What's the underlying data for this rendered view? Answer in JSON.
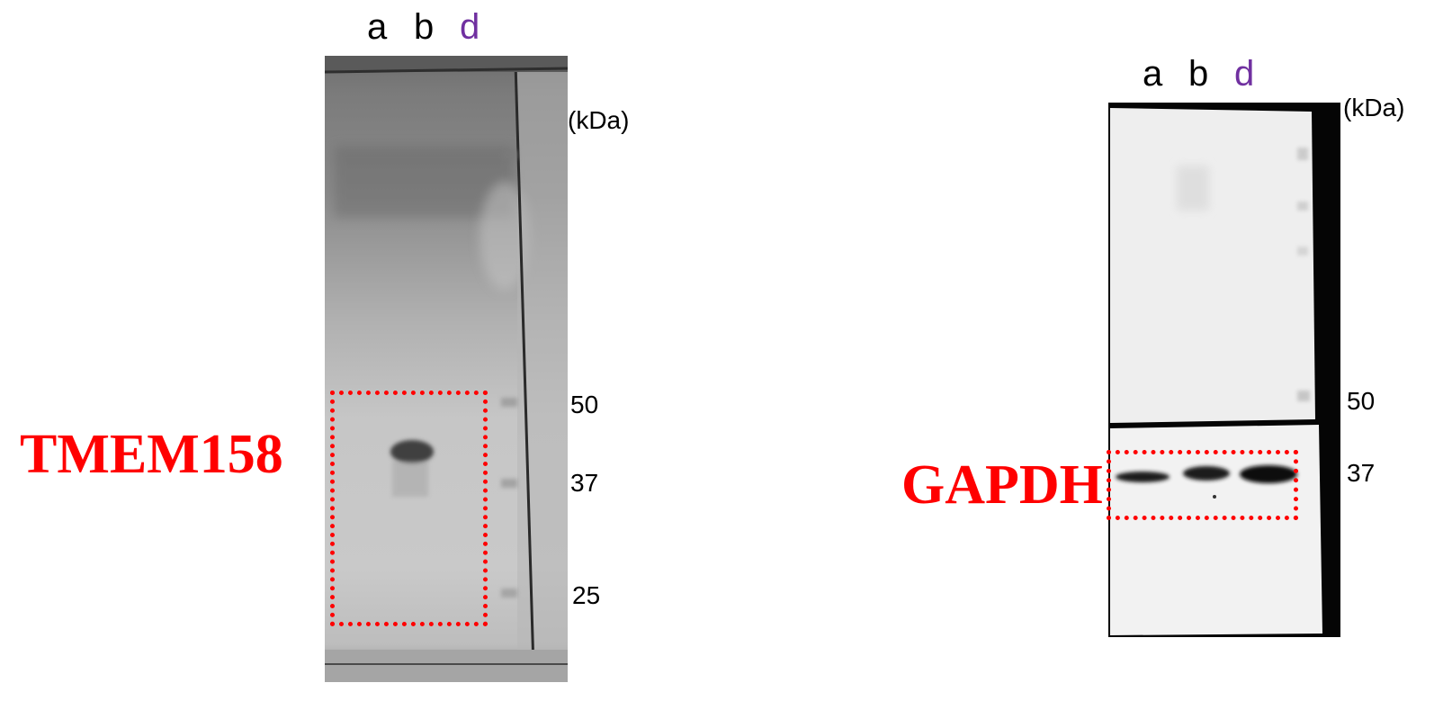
{
  "colors": {
    "highlight": "#ff0000",
    "lane_d": "#7030a0",
    "lane_default": "#000000"
  },
  "panels": [
    {
      "protein": "TMEM158",
      "lanes": [
        "a",
        "b",
        "d"
      ],
      "unit": "(kDa)",
      "markers": [
        "50",
        "37",
        "25"
      ]
    },
    {
      "protein": "GAPDH",
      "lanes": [
        "a",
        "b",
        "d"
      ],
      "unit": "(kDa)",
      "markers": [
        "50",
        "37"
      ]
    }
  ]
}
